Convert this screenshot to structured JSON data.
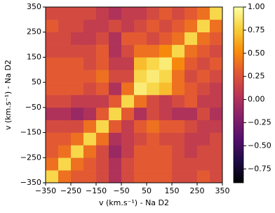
{
  "chart_data": {
    "type": "heatmap",
    "xlabel": "v (km.s⁻¹) - Na D2",
    "ylabel": "v (km.s⁻¹) - Na D2",
    "colormap": "inferno",
    "clim": [
      -0.9,
      1.0
    ],
    "x": [
      -325,
      -275,
      -225,
      -175,
      -125,
      -75,
      -25,
      25,
      75,
      125,
      175,
      225,
      275,
      325
    ],
    "y": [
      -325,
      -275,
      -225,
      -175,
      -125,
      -75,
      -25,
      25,
      75,
      125,
      175,
      225,
      275,
      325
    ],
    "z": [
      [
        0.8,
        0.4,
        0.3,
        0.3,
        0.2,
        0.0,
        0.2,
        0.3,
        0.3,
        0.3,
        0.2,
        0.2,
        0.3,
        0.2
      ],
      [
        0.4,
        0.8,
        0.4,
        0.3,
        0.2,
        0.0,
        0.2,
        0.3,
        0.3,
        0.3,
        0.2,
        0.2,
        0.2,
        0.2
      ],
      [
        0.3,
        0.4,
        0.8,
        0.4,
        0.2,
        -0.1,
        0.1,
        0.3,
        0.3,
        0.3,
        0.2,
        0.1,
        0.2,
        0.2
      ],
      [
        0.3,
        0.3,
        0.4,
        0.8,
        0.4,
        0.0,
        0.1,
        0.2,
        0.3,
        0.2,
        0.2,
        0.1,
        0.1,
        0.2
      ],
      [
        0.2,
        0.2,
        0.2,
        0.4,
        0.8,
        0.3,
        0.1,
        0.3,
        0.4,
        0.3,
        0.3,
        0.2,
        0.1,
        0.1
      ],
      [
        0.0,
        0.0,
        -0.1,
        0.0,
        0.3,
        0.8,
        0.3,
        0.0,
        0.2,
        0.1,
        0.0,
        0.0,
        0.2,
        0.0
      ],
      [
        0.2,
        0.2,
        0.1,
        0.1,
        0.1,
        0.3,
        0.8,
        0.4,
        0.2,
        0.1,
        0.2,
        0.3,
        0.1,
        0.1
      ],
      [
        0.3,
        0.3,
        0.3,
        0.2,
        0.3,
        0.0,
        0.4,
        0.9,
        0.8,
        0.7,
        0.4,
        0.3,
        0.2,
        0.1
      ],
      [
        0.3,
        0.3,
        0.3,
        0.3,
        0.4,
        0.2,
        0.2,
        0.8,
        0.9,
        0.8,
        0.4,
        0.2,
        0.3,
        0.2
      ],
      [
        0.3,
        0.3,
        0.3,
        0.2,
        0.3,
        0.1,
        0.1,
        0.7,
        0.8,
        0.9,
        0.5,
        0.3,
        0.2,
        0.3
      ],
      [
        0.2,
        0.2,
        0.2,
        0.2,
        0.3,
        0.0,
        0.2,
        0.4,
        0.4,
        0.5,
        0.8,
        0.4,
        0.3,
        0.2
      ],
      [
        0.2,
        0.2,
        0.1,
        0.1,
        0.2,
        0.0,
        0.3,
        0.3,
        0.2,
        0.3,
        0.4,
        0.8,
        0.4,
        0.3
      ],
      [
        0.3,
        0.2,
        0.2,
        0.1,
        0.1,
        0.2,
        0.1,
        0.2,
        0.3,
        0.2,
        0.3,
        0.4,
        0.8,
        0.4
      ],
      [
        0.2,
        0.2,
        0.2,
        0.2,
        0.1,
        0.0,
        0.1,
        0.1,
        0.2,
        0.3,
        0.2,
        0.3,
        0.4,
        0.8
      ]
    ],
    "xlim": [
      -350,
      350
    ],
    "ylim": [
      -350,
      350
    ],
    "xticks": [
      {
        "value": -350,
        "label": "−350"
      },
      {
        "value": -250,
        "label": "−250"
      },
      {
        "value": -150,
        "label": "−150"
      },
      {
        "value": -50,
        "label": "−50"
      },
      50,
      150,
      250,
      350
    ],
    "yticks": [
      {
        "value": -350,
        "label": "−350"
      },
      {
        "value": -250,
        "label": "−250"
      },
      {
        "value": -150,
        "label": "−150"
      },
      {
        "value": -50,
        "label": "−50"
      },
      50,
      150,
      250,
      350
    ],
    "cticks": [
      {
        "value": -0.75,
        "label": "−0.75"
      },
      {
        "value": -0.5,
        "label": "−0.50"
      },
      {
        "value": -0.25,
        "label": "−0.25"
      },
      {
        "value": 0,
        "label": "0.00"
      },
      {
        "value": 0.25,
        "label": "0.25"
      },
      {
        "value": 0.5,
        "label": "0.50"
      },
      {
        "value": 0.75,
        "label": "0.75"
      },
      {
        "value": 1,
        "label": "1.00"
      }
    ]
  }
}
